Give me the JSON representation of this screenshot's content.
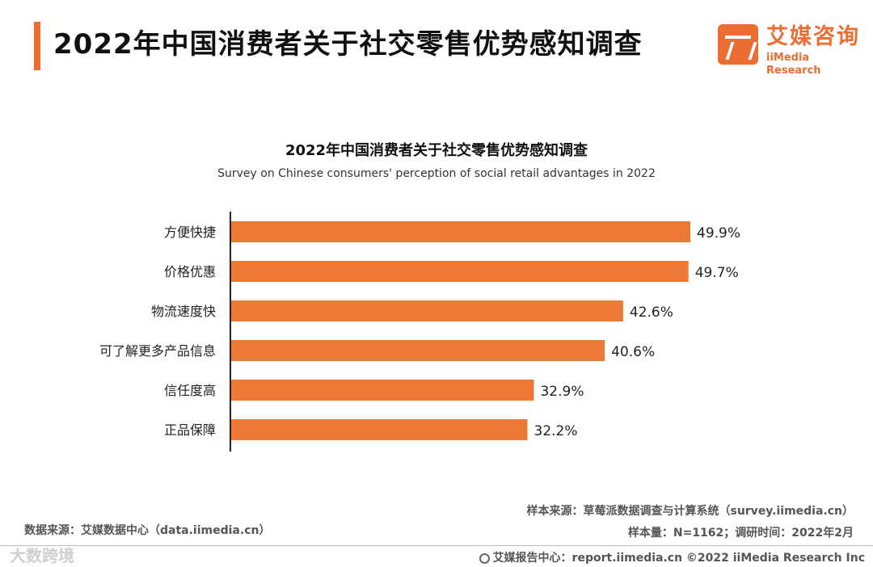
{
  "header": {
    "title": "2022年中国消费者关于社交零售优势感知调查"
  },
  "logo": {
    "cn": "艾媒咨询",
    "en": "iiMedia Research"
  },
  "chart_data": {
    "type": "bar",
    "orientation": "horizontal",
    "title": "2022年中国消费者关于社交零售优势感知调查",
    "subtitle": "Survey on Chinese consumers' perception of social retail advantages in 2022",
    "categories": [
      "方便快捷",
      "价格优惠",
      "物流速度快",
      "可了解更多产品信息",
      "信任度高",
      "正品保障"
    ],
    "values": [
      49.9,
      49.7,
      42.6,
      40.6,
      32.9,
      32.2
    ],
    "value_labels": [
      "49.9%",
      "49.7%",
      "42.6%",
      "40.6%",
      "32.9%",
      "32.2%"
    ],
    "unit": "%",
    "xlim": [
      0,
      60
    ],
    "bar_color": "#ec7a35",
    "grid": false,
    "legend": "none"
  },
  "footer": {
    "data_source": "数据来源：艾媒数据中心（data.iimedia.cn）",
    "sample_source": "样本来源：草莓派数据调查与计算系统（survey.iimedia.cn）",
    "sample_info": "样本量：N=1162；调研时间：2022年2月",
    "report_center": "艾媒报告中心：report.iimedia.cn   ©2022  iiMedia Research  Inc"
  },
  "watermark": "大数跨境"
}
